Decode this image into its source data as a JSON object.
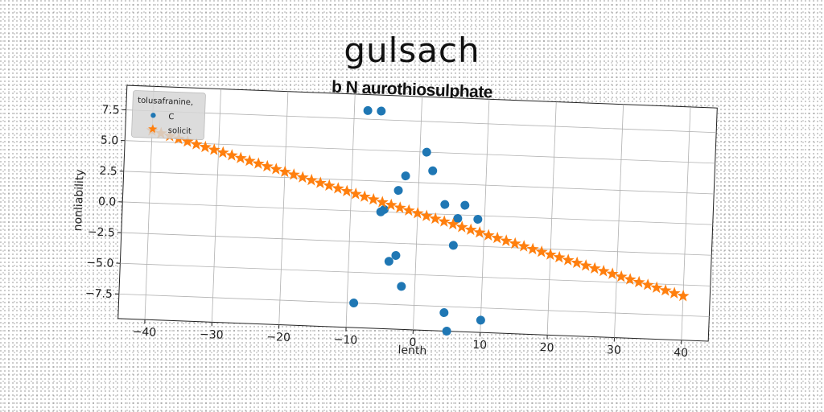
{
  "chart_data": {
    "type": "scatter",
    "title": "gulsach",
    "subtitle": "b N aurothiosulphate",
    "xlabel": "lenth",
    "ylabel": "nonliability",
    "xlim": [
      -44,
      44
    ],
    "ylim": [
      -9.5,
      9.5
    ],
    "xticks": [
      -40,
      -30,
      -20,
      -10,
      0,
      10,
      20,
      30,
      40
    ],
    "yticks": [
      -7.5,
      -5.0,
      -2.5,
      0.0,
      2.5,
      5.0,
      7.5
    ],
    "xtick_labels": [
      "−40",
      "−30",
      "−20",
      "−10",
      "0",
      "10",
      "20",
      "30",
      "40"
    ],
    "ytick_labels": [
      "−7.5",
      "−5.0",
      "−2.5",
      "0.0",
      "2.5",
      "5.0",
      "7.5"
    ],
    "grid": true,
    "legend": {
      "title": "tolusafranine,",
      "placement": "top-left",
      "entries": [
        "C",
        "solicit"
      ]
    },
    "series": [
      {
        "name": "C",
        "marker": "circle",
        "color": "#1f77b4",
        "points": [
          [
            -8,
            8.2
          ],
          [
            -6,
            8.2
          ],
          [
            1,
            5.0
          ],
          [
            2,
            3.5
          ],
          [
            -2,
            3.0
          ],
          [
            -3,
            1.8
          ],
          [
            -5,
            0.2
          ],
          [
            -5.5,
            0.0
          ],
          [
            4,
            0.8
          ],
          [
            7,
            0.8
          ],
          [
            6,
            -0.3
          ],
          [
            9,
            -0.3
          ],
          [
            5.5,
            -2.5
          ],
          [
            -3,
            -3.5
          ],
          [
            -4,
            -4.0
          ],
          [
            -2,
            -6.0
          ],
          [
            -9,
            -7.5
          ],
          [
            4.5,
            -8.0
          ],
          [
            5,
            -9.5
          ],
          [
            10,
            -8.5
          ]
        ]
      },
      {
        "name": "solicit",
        "marker": "star",
        "color": "#ff7f0e",
        "line": {
          "x_start": -40,
          "x_end": 40,
          "y_start": 5.9,
          "y_end": -5.9,
          "count": 61
        }
      }
    ]
  }
}
